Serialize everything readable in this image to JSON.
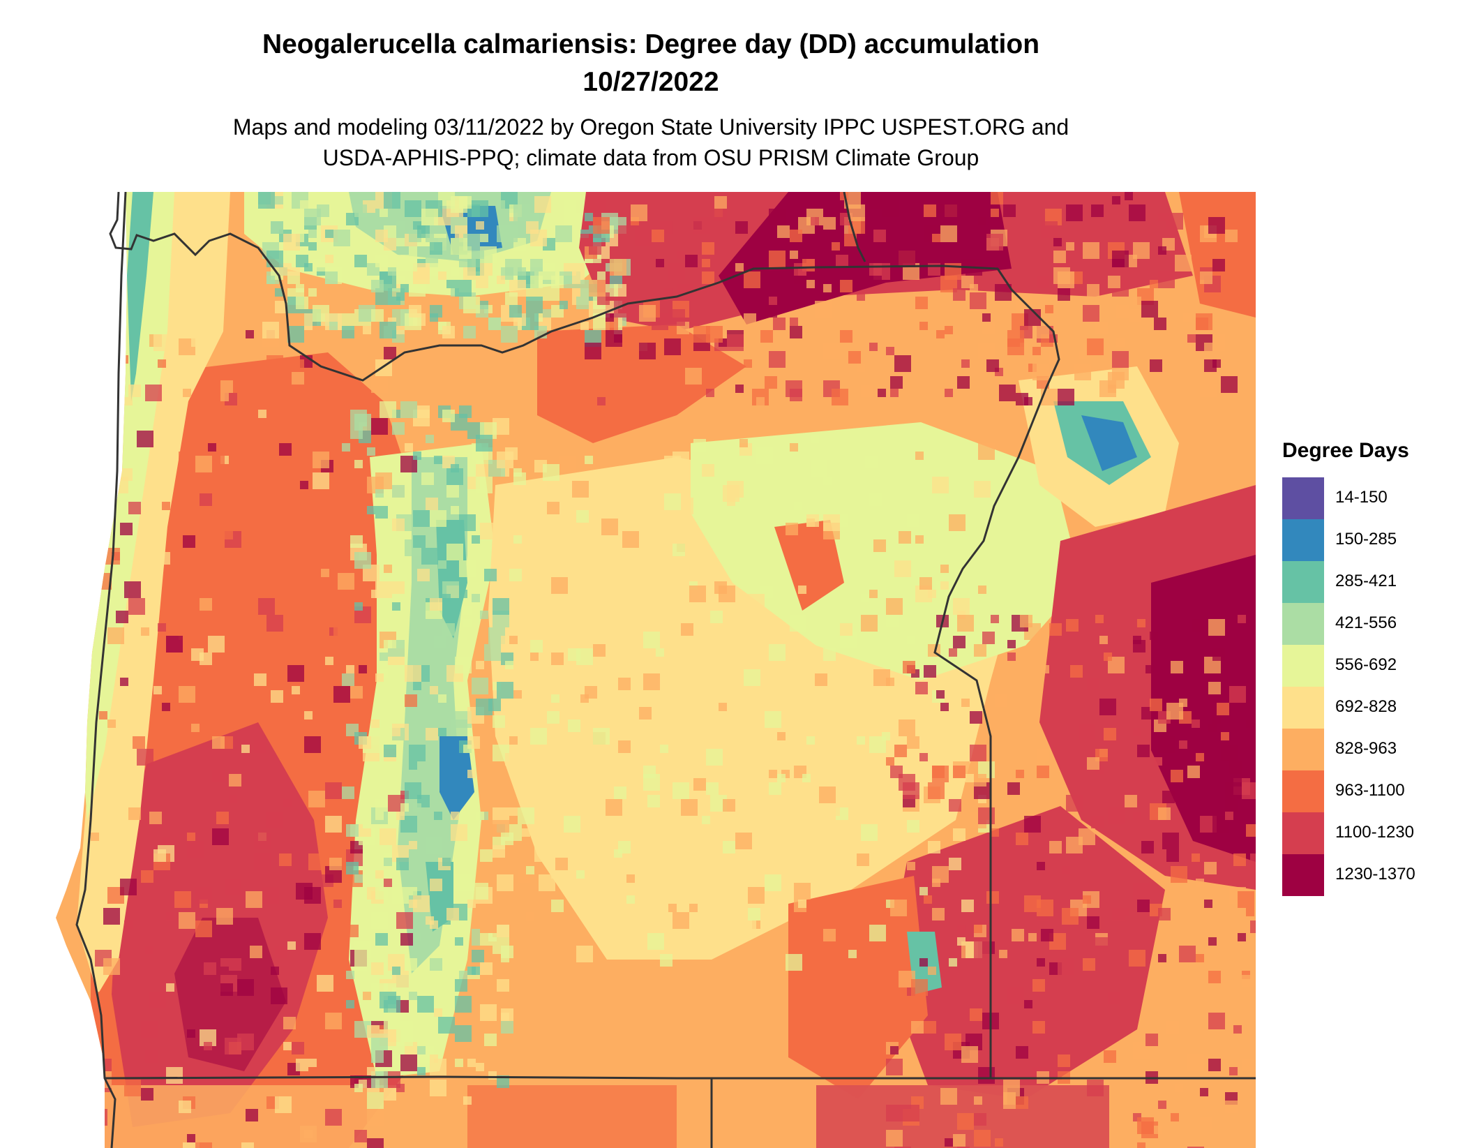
{
  "title": {
    "line1": "Neogalerucella calmariensis: Degree day (DD) accumulation",
    "line2": "10/27/2022"
  },
  "subtitle": {
    "line1": "Maps and modeling 03/11/2022 by Oregon State University IPPC USPEST.ORG and",
    "line2": "USDA-APHIS-PPQ; climate data from OSU PRISM Climate Group"
  },
  "legend": {
    "title": "Degree Days",
    "items": [
      {
        "label": "14-150",
        "color": "#5e4fa2"
      },
      {
        "label": "150-285",
        "color": "#3288bd"
      },
      {
        "label": "285-421",
        "color": "#66c2a5"
      },
      {
        "label": "421-556",
        "color": "#abdda4"
      },
      {
        "label": "556-692",
        "color": "#e6f598"
      },
      {
        "label": "692-828",
        "color": "#fee08b"
      },
      {
        "label": "828-963",
        "color": "#fdae61"
      },
      {
        "label": "963-1100",
        "color": "#f46d43"
      },
      {
        "label": "1100-1230",
        "color": "#d53e4f"
      },
      {
        "label": "1230-1370",
        "color": "#9e0142"
      }
    ]
  },
  "colors": {
    "boundary": "#333333",
    "background": "#ffffff"
  }
}
